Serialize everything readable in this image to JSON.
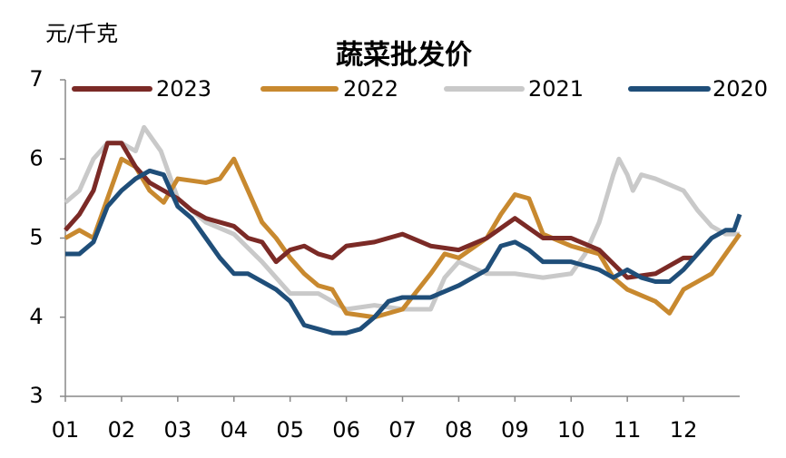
{
  "chart_data": {
    "type": "line",
    "title": "蔬菜批发价",
    "y_label": "元/千克",
    "xlim": [
      1,
      13
    ],
    "xticks": [
      {
        "value": 1,
        "label": "01"
      },
      {
        "value": 2,
        "label": "02"
      },
      {
        "value": 3,
        "label": "03"
      },
      {
        "value": 4,
        "label": "04"
      },
      {
        "value": 5,
        "label": "05"
      },
      {
        "value": 6,
        "label": "06"
      },
      {
        "value": 7,
        "label": "07"
      },
      {
        "value": 8,
        "label": "08"
      },
      {
        "value": 9,
        "label": "09"
      },
      {
        "value": 10,
        "label": "10"
      },
      {
        "value": 11,
        "label": "11"
      },
      {
        "value": 12,
        "label": "12"
      }
    ],
    "ylim": [
      3,
      7
    ],
    "yticks": [
      3,
      4,
      5,
      6,
      7
    ],
    "series": [
      {
        "name": "2023",
        "color": "#7b2a26",
        "x": [
          1,
          1.25,
          1.5,
          1.75,
          2,
          2.25,
          2.5,
          2.75,
          3,
          3.25,
          3.5,
          3.75,
          4,
          4.25,
          4.5,
          4.75,
          5,
          5.25,
          5.5,
          5.75,
          6,
          6.5,
          7,
          7.5,
          8,
          8.5,
          9,
          9.5,
          10,
          10.5,
          11,
          11.5,
          12,
          12.2
        ],
        "values": [
          5.1,
          5.3,
          5.6,
          6.2,
          6.2,
          5.9,
          5.7,
          5.6,
          5.5,
          5.35,
          5.25,
          5.2,
          5.15,
          5.0,
          4.95,
          4.7,
          4.85,
          4.9,
          4.8,
          4.75,
          4.9,
          4.95,
          5.05,
          4.9,
          4.85,
          5.0,
          5.25,
          5.0,
          5.0,
          4.85,
          4.5,
          4.55,
          4.75,
          4.75
        ]
      },
      {
        "name": "2022",
        "color": "#c8892f",
        "x": [
          1,
          1.25,
          1.5,
          1.75,
          2,
          2.25,
          2.5,
          2.75,
          3,
          3.5,
          3.75,
          4,
          4.25,
          4.5,
          4.75,
          5,
          5.25,
          5.5,
          5.75,
          6,
          6.5,
          7,
          7.5,
          7.75,
          8,
          8.5,
          8.75,
          9,
          9.25,
          9.5,
          10,
          10.5,
          10.75,
          11,
          11.5,
          11.75,
          12,
          12.5,
          13
        ],
        "values": [
          5.0,
          5.1,
          5.0,
          5.5,
          6.0,
          5.9,
          5.6,
          5.45,
          5.75,
          5.7,
          5.75,
          6.0,
          5.6,
          5.2,
          5.0,
          4.75,
          4.55,
          4.4,
          4.35,
          4.05,
          4.0,
          4.1,
          4.55,
          4.8,
          4.75,
          5.0,
          5.3,
          5.55,
          5.5,
          5.05,
          4.9,
          4.8,
          4.5,
          4.35,
          4.2,
          4.05,
          4.35,
          4.55,
          5.05
        ]
      },
      {
        "name": "2021",
        "color": "#c9c9c9",
        "x": [
          1,
          1.25,
          1.5,
          1.75,
          2,
          2.25,
          2.4,
          2.7,
          3,
          3.5,
          4,
          4.5,
          5,
          5.5,
          6,
          6.5,
          7,
          7.5,
          7.75,
          8,
          8.5,
          9,
          9.5,
          10,
          10.25,
          10.5,
          10.75,
          10.85,
          11,
          11.1,
          11.25,
          11.5,
          12,
          12.25,
          12.5,
          12.75,
          13
        ],
        "values": [
          5.45,
          5.6,
          6.0,
          6.2,
          6.2,
          6.1,
          6.4,
          6.1,
          5.5,
          5.2,
          5.05,
          4.7,
          4.3,
          4.3,
          4.1,
          4.15,
          4.1,
          4.1,
          4.5,
          4.7,
          4.55,
          4.55,
          4.5,
          4.55,
          4.8,
          5.2,
          5.8,
          6.0,
          5.8,
          5.6,
          5.8,
          5.75,
          5.6,
          5.35,
          5.15,
          5.05,
          5.05
        ]
      },
      {
        "name": "2020",
        "color": "#1f4e79",
        "x": [
          1,
          1.25,
          1.5,
          1.75,
          2,
          2.25,
          2.5,
          2.75,
          3,
          3.25,
          3.5,
          3.75,
          4,
          4.25,
          4.5,
          4.75,
          5,
          5.25,
          5.5,
          5.75,
          6,
          6.25,
          6.5,
          6.75,
          7,
          7.5,
          8,
          8.5,
          8.75,
          9,
          9.25,
          9.5,
          10,
          10.5,
          10.75,
          11,
          11.25,
          11.5,
          11.75,
          12,
          12.25,
          12.5,
          12.75,
          12.9,
          13
        ],
        "values": [
          4.8,
          4.8,
          4.95,
          5.4,
          5.6,
          5.75,
          5.85,
          5.8,
          5.4,
          5.25,
          5.0,
          4.75,
          4.55,
          4.55,
          4.45,
          4.35,
          4.2,
          3.9,
          3.85,
          3.8,
          3.8,
          3.85,
          4.0,
          4.2,
          4.25,
          4.25,
          4.4,
          4.6,
          4.9,
          4.95,
          4.85,
          4.7,
          4.7,
          4.6,
          4.5,
          4.6,
          4.5,
          4.45,
          4.45,
          4.6,
          4.8,
          5.0,
          5.1,
          5.1,
          5.3
        ]
      }
    ]
  }
}
